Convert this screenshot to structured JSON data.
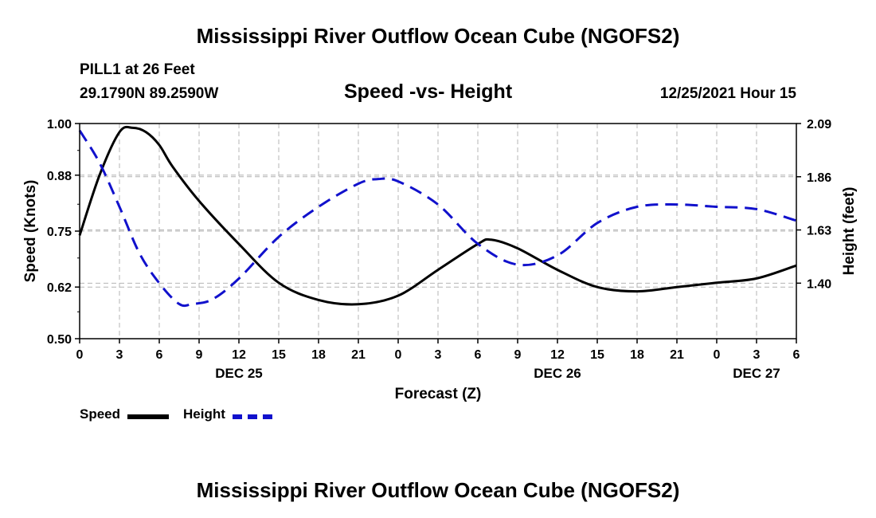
{
  "header": {
    "title": "Mississippi River Outflow Ocean Cube (NGOFS2)",
    "station": "PILL1 at 26 Feet",
    "location": "29.1790N  89.2590W",
    "date": "12/25/2021 Hour 15"
  },
  "footer": {
    "title": "Mississippi River Outflow Ocean Cube (NGOFS2)"
  },
  "legend": {
    "speed_label": "Speed",
    "height_label": "Height"
  },
  "colors": {
    "speed": "#000000",
    "height": "#1111cc",
    "grid": "#b4b4b4"
  },
  "chart_data": {
    "type": "line",
    "title": "Speed -vs- Height",
    "xlabel": "Forecast (Z)",
    "ylabel": "Speed (Knots)",
    "y2label": "Height (feet)",
    "ylim": [
      0.5,
      1.0
    ],
    "y2lim": [
      1.16,
      2.09
    ],
    "yticks": [
      "0.50",
      "0.62",
      "0.75",
      "0.88",
      "1.00"
    ],
    "y2ticks": [
      "1.40",
      "1.63",
      "1.86",
      "2.09"
    ],
    "xlim": [
      0,
      54
    ],
    "x_tick_labels": [
      "0",
      "3",
      "6",
      "9",
      "12",
      "15",
      "18",
      "21",
      "0",
      "3",
      "6",
      "9",
      "12",
      "15",
      "18",
      "21",
      "0",
      "3",
      "6"
    ],
    "date_labels": [
      {
        "hour": 12,
        "label": "DEC 25"
      },
      {
        "hour": 36,
        "label": "DEC 26"
      },
      {
        "hour": 51,
        "label": "DEC 27"
      }
    ],
    "series": [
      {
        "name": "Speed",
        "axis": "left",
        "x": [
          0,
          1.5,
          3,
          4,
          5,
          6,
          7,
          9,
          12,
          15,
          18,
          21,
          24,
          27,
          30,
          31,
          33,
          36,
          39,
          42,
          45,
          48,
          51,
          54
        ],
        "values": [
          0.74,
          0.88,
          0.98,
          0.99,
          0.98,
          0.95,
          0.9,
          0.82,
          0.72,
          0.63,
          0.59,
          0.58,
          0.6,
          0.66,
          0.72,
          0.73,
          0.71,
          0.66,
          0.62,
          0.61,
          0.62,
          0.63,
          0.64,
          0.67
        ]
      },
      {
        "name": "Height",
        "axis": "right",
        "x": [
          0,
          1.5,
          3,
          4.5,
          6,
          7.5,
          8.5,
          10,
          12,
          15,
          18,
          21,
          22.5,
          24,
          27,
          30,
          33,
          36,
          39,
          42,
          45,
          48,
          51,
          54
        ],
        "values": [
          2.06,
          1.92,
          1.73,
          1.53,
          1.4,
          1.31,
          1.31,
          1.33,
          1.42,
          1.6,
          1.73,
          1.83,
          1.85,
          1.84,
          1.74,
          1.57,
          1.48,
          1.52,
          1.66,
          1.73,
          1.74,
          1.73,
          1.72,
          1.67
        ]
      }
    ]
  }
}
